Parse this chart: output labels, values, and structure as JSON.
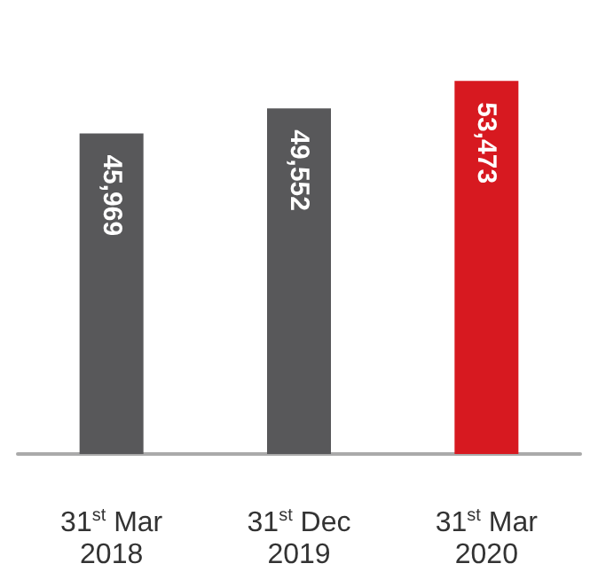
{
  "chart_data": {
    "type": "bar",
    "categories": [
      "31$^{st}$ Mar 2018",
      "31$^{st}$ Dec 2019",
      "31$^{st}$ Mar 2020"
    ],
    "values": [
      45969,
      49552,
      53473
    ],
    "value_labels": [
      "45,969",
      "49,552",
      "53,473"
    ],
    "colors": [
      "#58585a",
      "#58585a",
      "#d71920"
    ]
  }
}
